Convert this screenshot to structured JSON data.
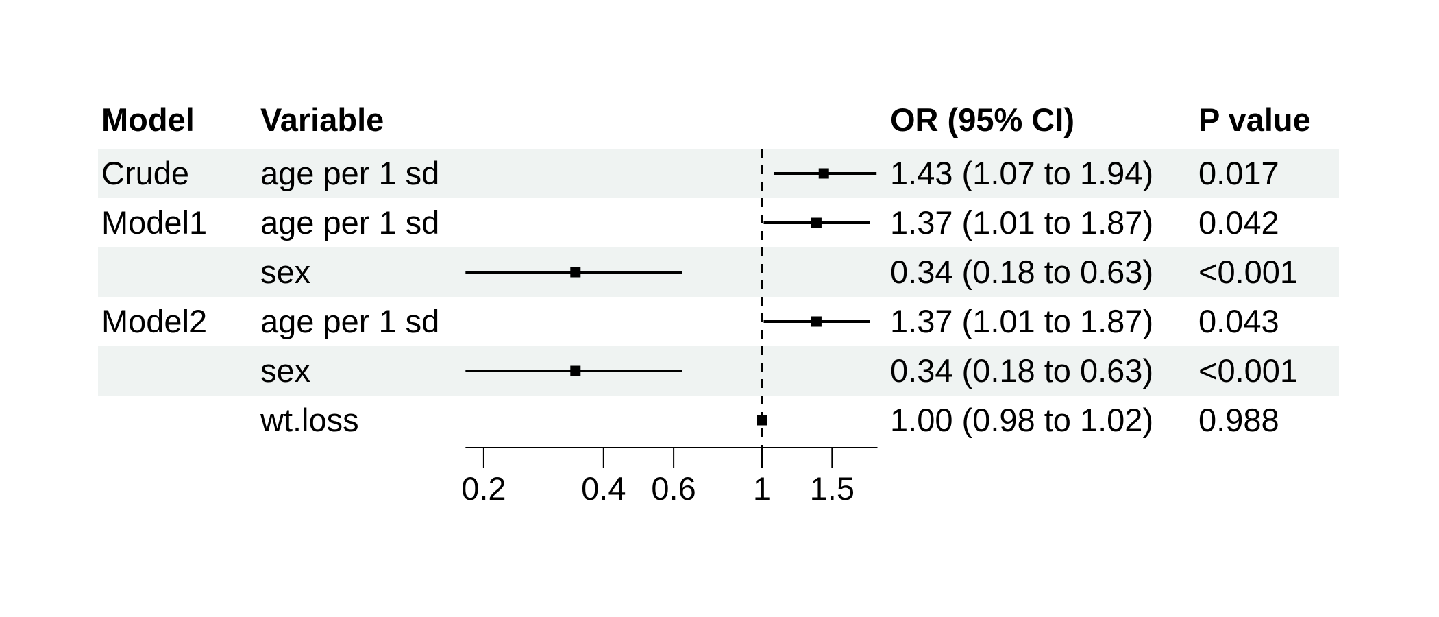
{
  "table": {
    "columns": [
      "Model",
      "Variable",
      "OR (95% CI)",
      "P value"
    ]
  },
  "chart_data": {
    "type": "forest",
    "x_scale": "log10",
    "reference_line": 1,
    "axis_range": [
      0.18,
      1.95
    ],
    "x_axis_ticks": [
      {
        "value": 0.2,
        "label": "0.2"
      },
      {
        "value": 0.4,
        "label": "0.4"
      },
      {
        "value": 0.6,
        "label": "0.6"
      },
      {
        "value": 1,
        "label": "1"
      },
      {
        "value": 1.5,
        "label": "1.5"
      }
    ],
    "stripe_color": "#eff3f2",
    "line_color": "#000000",
    "marker_color": "#000000",
    "rows": [
      {
        "model": "Crude",
        "variable": "age per 1 sd",
        "or_ci": "1.43 (1.07 to 1.94)",
        "p": "0.017",
        "est": 1.43,
        "lo": 1.07,
        "hi": 1.94,
        "shaded": true
      },
      {
        "model": "Model1",
        "variable": "age per 1 sd",
        "or_ci": "1.37 (1.01 to 1.87)",
        "p": "0.042",
        "est": 1.37,
        "lo": 1.01,
        "hi": 1.87,
        "shaded": false
      },
      {
        "model": "",
        "variable": "sex",
        "or_ci": "0.34 (0.18 to 0.63)",
        "p": "<0.001",
        "est": 0.34,
        "lo": 0.18,
        "hi": 0.63,
        "shaded": true
      },
      {
        "model": "Model2",
        "variable": "age per 1 sd",
        "or_ci": "1.37 (1.01 to 1.87)",
        "p": "0.043",
        "est": 1.37,
        "lo": 1.01,
        "hi": 1.87,
        "shaded": false
      },
      {
        "model": "",
        "variable": "sex",
        "or_ci": "0.34 (0.18 to 0.63)",
        "p": "<0.001",
        "est": 0.34,
        "lo": 0.18,
        "hi": 0.63,
        "shaded": true
      },
      {
        "model": "",
        "variable": "wt.loss",
        "or_ci": "1.00 (0.98 to 1.02)",
        "p": "0.988",
        "est": 1.0,
        "lo": 0.98,
        "hi": 1.02,
        "shaded": false
      }
    ]
  }
}
